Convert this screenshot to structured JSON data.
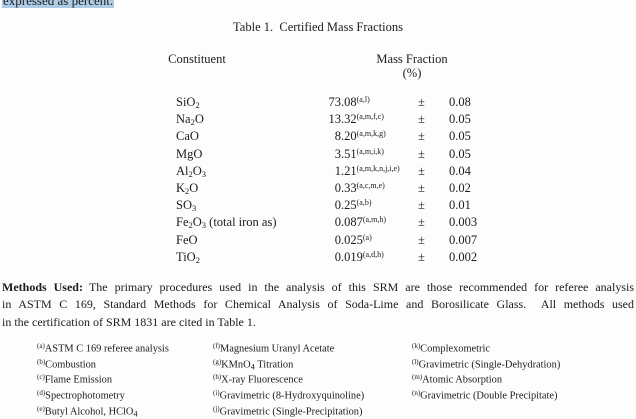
{
  "page": {
    "selection_text": "expressed as percent.",
    "highlight_color": "#aecbe6"
  },
  "table": {
    "title": "Table 1.  Certified Mass Fractions",
    "col_constituent": "Constituent",
    "col_mass_fraction": "Mass Fraction",
    "col_unit": "(%)",
    "plus_minus": "±",
    "rows": [
      {
        "formula": [
          [
            "SiO",
            "2"
          ]
        ],
        "value": "73.08",
        "footnote_marks": "(a,l)",
        "uncertainty": "0.08"
      },
      {
        "formula": [
          [
            "Na",
            "2"
          ],
          [
            "O",
            ""
          ]
        ],
        "value": "13.32",
        "footnote_marks": "(a,m,f,c)",
        "uncertainty": "0.05"
      },
      {
        "formula": [
          [
            "CaO",
            ""
          ]
        ],
        "value": "8.20",
        "footnote_marks": "(a,m,k,g)",
        "uncertainty": "0.05"
      },
      {
        "formula": [
          [
            "MgO",
            ""
          ]
        ],
        "value": "3.51",
        "footnote_marks": "(a,m,i,k)",
        "uncertainty": "0.05"
      },
      {
        "formula": [
          [
            "Al",
            "2"
          ],
          [
            "O",
            "3"
          ]
        ],
        "value": "1.21",
        "footnote_marks": "(a,m,k,n,j,i,e)",
        "uncertainty": "0.04"
      },
      {
        "formula": [
          [
            "K",
            "2"
          ],
          [
            "O",
            ""
          ]
        ],
        "value": "0.33",
        "footnote_marks": "(a,c,m,e)",
        "uncertainty": "0.02"
      },
      {
        "formula": [
          [
            "SO",
            "3"
          ]
        ],
        "value": "0.25",
        "footnote_marks": "(a,b)",
        "uncertainty": "0.01"
      },
      {
        "formula": [
          [
            "Fe",
            "2"
          ],
          [
            "O",
            "3"
          ],
          [
            " (total iron as)",
            ""
          ]
        ],
        "value": "0.087",
        "footnote_marks": "(a,m,h)",
        "uncertainty": "0.003"
      },
      {
        "formula": [
          [
            "FeO",
            ""
          ]
        ],
        "value": "0.025",
        "footnote_marks": "(a)",
        "uncertainty": "0.007"
      },
      {
        "formula": [
          [
            "TiO",
            "2"
          ]
        ],
        "value": "0.019",
        "footnote_marks": "(a,d,h)",
        "uncertainty": "0.002"
      }
    ]
  },
  "methods": {
    "label": "Methods Used:",
    "line1": "The primary procedures used in the analysis of this SRM are those recommended for referee analysis",
    "line2": "in ASTM C 169, Standard Methods for Chemical Analysis of Soda-Lime and Borosilicate Glass.  All methods used",
    "line3": "in the certification of SRM 1831 are cited in Table 1."
  },
  "footnotes": {
    "columns": [
      [
        {
          "mark": "(a)",
          "segs": [
            [
              "ASTM C 169 referee analysis",
              ""
            ]
          ]
        },
        {
          "mark": "(b)",
          "segs": [
            [
              "Combustion",
              ""
            ]
          ]
        },
        {
          "mark": "(c)",
          "segs": [
            [
              "Flame Emission",
              ""
            ]
          ]
        },
        {
          "mark": "(d)",
          "segs": [
            [
              "Spectrophotometry",
              ""
            ]
          ]
        },
        {
          "mark": "(e)",
          "segs": [
            [
              "Butyl Alcohol, HClO",
              "4"
            ]
          ]
        }
      ],
      [
        {
          "mark": "(f)",
          "segs": [
            [
              "Magnesium Uranyl Acetate",
              ""
            ]
          ]
        },
        {
          "mark": "(g)",
          "segs": [
            [
              "KMnO",
              "4"
            ],
            [
              " Titration",
              ""
            ]
          ]
        },
        {
          "mark": "(h)",
          "segs": [
            [
              "X-ray Fluorescence",
              ""
            ]
          ]
        },
        {
          "mark": "(i)",
          "segs": [
            [
              "Gravimetric (8-Hydroxyquinoline)",
              ""
            ]
          ]
        },
        {
          "mark": "(j)",
          "segs": [
            [
              "Gravimetric (Single-Precipitation)",
              ""
            ]
          ]
        }
      ],
      [
        {
          "mark": "(k)",
          "segs": [
            [
              "Complexometric",
              ""
            ]
          ]
        },
        {
          "mark": "(l)",
          "segs": [
            [
              "Gravimetric (Single-Dehydration)",
              ""
            ]
          ]
        },
        {
          "mark": "(m)",
          "segs": [
            [
              "Atomic Absorption",
              ""
            ]
          ]
        },
        {
          "mark": "(n)",
          "segs": [
            [
              "Gravimetric (Double Precipitate)",
              ""
            ]
          ]
        }
      ]
    ]
  }
}
